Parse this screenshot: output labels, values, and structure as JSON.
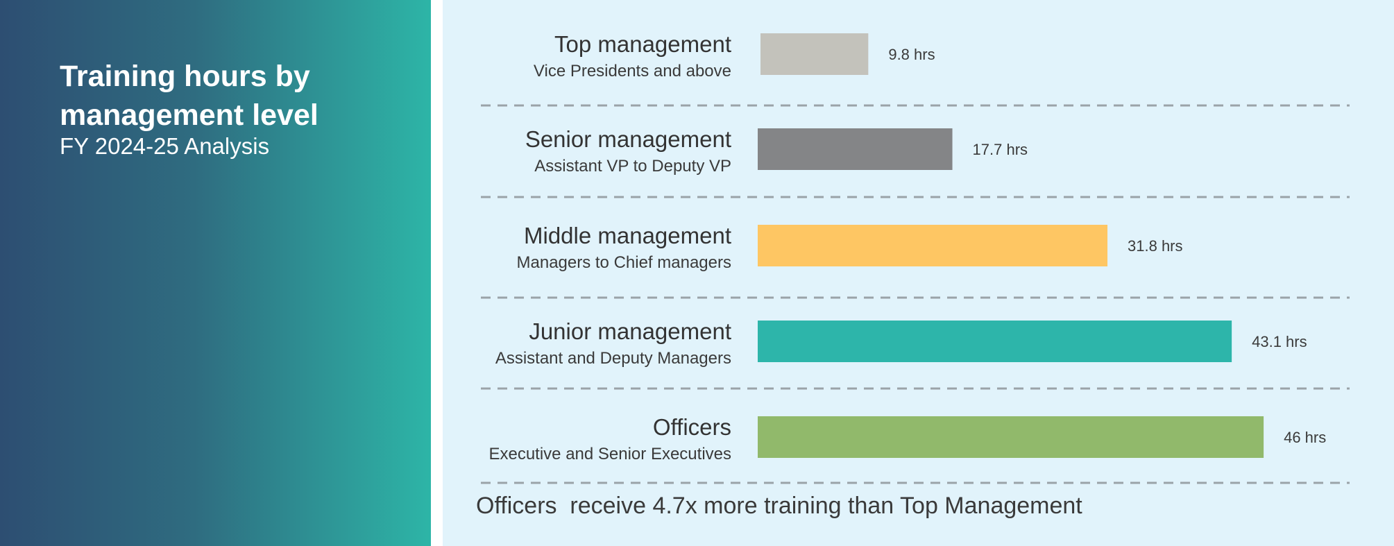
{
  "title": "Training hours by management level",
  "subtitle": "FY 2024-25 Analysis",
  "footnote": "Officers  receive 4.7x more training than Top Management",
  "chart_data": {
    "type": "bar",
    "orientation": "horizontal",
    "categories": [
      "Top management",
      "Senior management",
      "Middle management",
      "Junior management",
      "Officers"
    ],
    "subtitles": [
      "Vice Presidents and above",
      "Assistant VP to Deputy VP",
      "Managers to Chief managers",
      "Assistant and Deputy Managers",
      "Executive and Senior Executives"
    ],
    "values": [
      9.8,
      17.7,
      31.8,
      43.1,
      46
    ],
    "value_labels": [
      "9.8 hrs",
      "17.7 hrs",
      "31.8 hrs",
      "43.1 hrs",
      "46 hrs"
    ],
    "colors": [
      "#c3c2bb",
      "#848587",
      "#fec663",
      "#2db5aa",
      "#91b96b"
    ],
    "unit": "hrs",
    "grid": false,
    "separators": "dashed"
  }
}
